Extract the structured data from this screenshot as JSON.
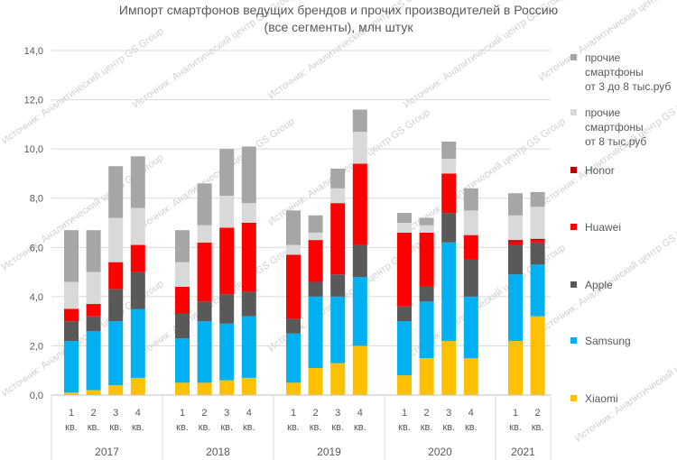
{
  "chart_data": {
    "type": "bar",
    "stacked": true,
    "title_line1": "Импорт смартфонов ведущих брендов и прочих производителей в Россию",
    "title_line2": "(все сегменты), млн штук",
    "watermark": "Источник: Аналитический центр GS Group",
    "ylim": [
      0,
      14
    ],
    "yticks": [
      "0,0",
      "2,0",
      "4,0",
      "6,0",
      "8,0",
      "10,0",
      "12,0",
      "14,0"
    ],
    "quarter_suffix": "кв.",
    "years": [
      {
        "label": "2017",
        "quarters": [
          "1",
          "2",
          "3",
          "4"
        ]
      },
      {
        "label": "2018",
        "quarters": [
          "1",
          "2",
          "3",
          "4"
        ]
      },
      {
        "label": "2019",
        "quarters": [
          "1",
          "2",
          "3",
          "4"
        ]
      },
      {
        "label": "2020",
        "quarters": [
          "1",
          "2",
          "3",
          "4"
        ]
      },
      {
        "label": "2021",
        "quarters": [
          "1",
          "2"
        ]
      }
    ],
    "series": [
      {
        "name": "Xiaomi",
        "color": "#ffc000",
        "values": [
          0.1,
          0.2,
          0.4,
          0.7,
          0.5,
          0.5,
          0.6,
          0.7,
          0.5,
          1.1,
          1.3,
          2.0,
          0.8,
          1.5,
          2.2,
          1.5,
          2.2,
          3.2
        ]
      },
      {
        "name": "Samsung",
        "color": "#00b0f0",
        "values": [
          2.1,
          2.4,
          2.6,
          2.8,
          1.8,
          2.5,
          2.3,
          2.5,
          2.0,
          2.9,
          2.7,
          2.8,
          2.2,
          2.3,
          4.0,
          2.5,
          2.7,
          2.1
        ]
      },
      {
        "name": "Apple",
        "color": "#595959",
        "values": [
          0.8,
          0.6,
          1.3,
          1.5,
          1.0,
          0.8,
          1.2,
          1.0,
          0.6,
          0.6,
          0.9,
          1.3,
          0.6,
          0.6,
          1.2,
          1.5,
          1.2,
          0.9
        ]
      },
      {
        "name": "Huawei",
        "color": "#ff0000",
        "values": [
          0.5,
          0.5,
          1.1,
          1.1,
          1.1,
          2.4,
          2.7,
          2.8,
          2.6,
          1.7,
          2.9,
          3.3,
          3.0,
          2.2,
          1.6,
          1.0,
          0.1,
          0.1
        ]
      },
      {
        "name": "Honor",
        "color": "#c00000",
        "values": [
          0,
          0,
          0,
          0,
          0,
          0,
          0,
          0,
          0,
          0,
          0,
          0,
          0,
          0,
          0,
          0,
          0.1,
          0.05
        ]
      },
      {
        "name": "прочие смартфоны от 8 тыс.руб",
        "color": "#d9d9d9",
        "values": [
          1.1,
          1.3,
          1.8,
          1.5,
          1.0,
          0.7,
          1.3,
          0.8,
          0.4,
          0.3,
          0.6,
          1.3,
          0.4,
          0.3,
          0.6,
          1.0,
          1.0,
          1.3
        ]
      },
      {
        "name": "прочие смартфоны от 3 до 8 тыс.руб",
        "color": "#a6a6a6",
        "values": [
          2.1,
          1.7,
          2.1,
          2.1,
          1.3,
          1.7,
          1.9,
          2.3,
          1.4,
          0.7,
          0.8,
          0.9,
          0.4,
          0.3,
          0.7,
          0.9,
          0.9,
          0.6
        ]
      }
    ],
    "legend": [
      {
        "series": 6,
        "lines": [
          "прочие",
          "смартфоны",
          "от 3 до 8 тыс.руб"
        ]
      },
      {
        "series": 5,
        "lines": [
          "прочие",
          "смартфоны",
          "от 8 тыс.руб"
        ]
      },
      {
        "series": 4,
        "lines": [
          "Honor"
        ]
      },
      {
        "series": 3,
        "lines": [
          "Huawei"
        ]
      },
      {
        "series": 2,
        "lines": [
          "Apple"
        ]
      },
      {
        "series": 1,
        "lines": [
          "Samsung"
        ]
      },
      {
        "series": 0,
        "lines": [
          "Xiaomi"
        ]
      }
    ]
  }
}
